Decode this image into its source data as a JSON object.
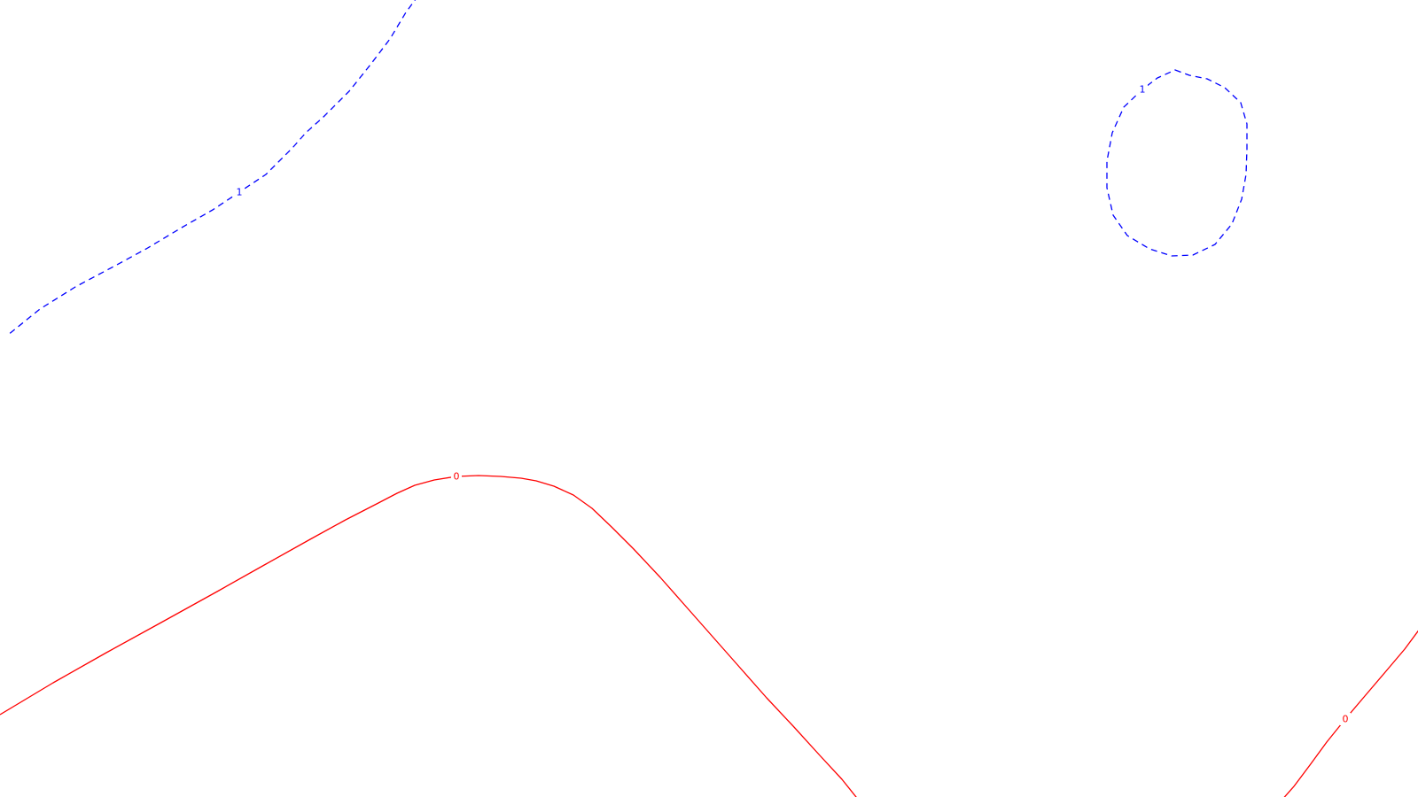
{
  "chart_data": {
    "type": "contour",
    "title": "",
    "xlabel": "",
    "ylabel": "",
    "grid": false,
    "legend": "none",
    "colors": {
      "positive": "#0000ff",
      "zero": "#ff0000",
      "background": "#ffffff"
    },
    "levels": [
      {
        "name": "level-1-upper-left",
        "level": "1",
        "style": "dashed",
        "color": "#0000ff",
        "closed": false,
        "label_index": 9,
        "points": [
          [
            472,
            -5
          ],
          [
            458,
            14
          ],
          [
            440,
            44
          ],
          [
            418,
            73
          ],
          [
            394,
            103
          ],
          [
            365,
            132
          ],
          [
            345,
            150
          ],
          [
            330,
            167
          ],
          [
            300,
            197
          ],
          [
            270,
            217
          ],
          [
            240,
            237
          ],
          [
            205,
            257
          ],
          [
            165,
            281
          ],
          [
            130,
            300
          ],
          [
            85,
            324
          ],
          [
            45,
            349
          ],
          [
            8,
            379
          ]
        ]
      },
      {
        "name": "level-1-loop",
        "level": "1",
        "style": "dashed",
        "color": "#0000ff",
        "closed": true,
        "label_index": 20,
        "points": [
          [
            1326,
            79
          ],
          [
            1342,
            85
          ],
          [
            1362,
            89
          ],
          [
            1382,
            99
          ],
          [
            1400,
            116
          ],
          [
            1407,
            140
          ],
          [
            1407,
            168
          ],
          [
            1406,
            197
          ],
          [
            1401,
            225
          ],
          [
            1390,
            253
          ],
          [
            1371,
            276
          ],
          [
            1346,
            288
          ],
          [
            1322,
            289
          ],
          [
            1297,
            281
          ],
          [
            1272,
            266
          ],
          [
            1256,
            243
          ],
          [
            1249,
            212
          ],
          [
            1249,
            182
          ],
          [
            1255,
            150
          ],
          [
            1268,
            121
          ],
          [
            1289,
            101
          ],
          [
            1306,
            88
          ]
        ]
      },
      {
        "name": "level-0-main",
        "level": "0",
        "style": "solid",
        "color": "#ff0000",
        "closed": false,
        "label_index": 12,
        "points": [
          [
            0,
            807
          ],
          [
            60,
            771
          ],
          [
            120,
            737
          ],
          [
            180,
            704
          ],
          [
            245,
            668
          ],
          [
            300,
            637
          ],
          [
            350,
            609
          ],
          [
            390,
            587
          ],
          [
            425,
            569
          ],
          [
            448,
            557
          ],
          [
            468,
            548
          ],
          [
            490,
            542
          ],
          [
            515,
            538
          ],
          [
            540,
            537
          ],
          [
            565,
            538
          ],
          [
            588,
            540
          ],
          [
            605,
            543
          ],
          [
            625,
            549
          ],
          [
            647,
            559
          ],
          [
            668,
            574
          ],
          [
            690,
            595
          ],
          [
            715,
            620
          ],
          [
            745,
            652
          ],
          [
            775,
            686
          ],
          [
            805,
            720
          ],
          [
            835,
            754
          ],
          [
            865,
            788
          ],
          [
            895,
            820
          ],
          [
            925,
            853
          ],
          [
            950,
            880
          ],
          [
            970,
            905
          ]
        ]
      },
      {
        "name": "level-0-right",
        "level": "0",
        "style": "solid",
        "color": "#ff0000",
        "closed": false,
        "label_index": 4,
        "points": [
          [
            1605,
            706
          ],
          [
            1585,
            733
          ],
          [
            1563,
            759
          ],
          [
            1540,
            786
          ],
          [
            1518,
            812
          ],
          [
            1497,
            838
          ],
          [
            1478,
            864
          ],
          [
            1460,
            888
          ],
          [
            1445,
            905
          ]
        ]
      }
    ]
  }
}
